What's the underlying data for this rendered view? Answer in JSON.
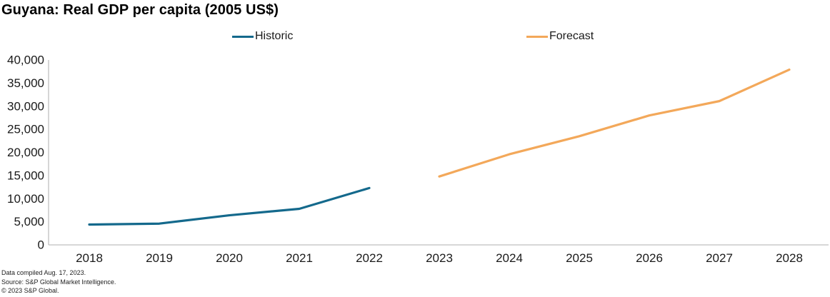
{
  "title": "Guyana: Real GDP per capita (2005 US$)",
  "legend": [
    {
      "label": "Historic",
      "color": "#14698C"
    },
    {
      "label": "Forecast",
      "color": "#F3A85A"
    }
  ],
  "footnotes": {
    "compiled": "Data compiled Aug. 17, 2023.",
    "source": "Source: S&P Global Market Intelligence.",
    "copyright": "© 2023 S&P Global."
  },
  "chart_data": {
    "type": "line",
    "title": "Guyana: Real GDP per capita (2005 US$)",
    "xlabel": "",
    "ylabel": "",
    "categories": [
      2018,
      2019,
      2020,
      2021,
      2022,
      2023,
      2024,
      2025,
      2026,
      2027,
      2028
    ],
    "series": [
      {
        "name": "Historic",
        "color": "#14698C",
        "x": [
          2018,
          2019,
          2020,
          2021,
          2022
        ],
        "values": [
          4400,
          4600,
          6400,
          7800,
          12300
        ]
      },
      {
        "name": "Forecast",
        "color": "#F3A85A",
        "x": [
          2023,
          2024,
          2025,
          2026,
          2027,
          2028
        ],
        "values": [
          14800,
          19600,
          23500,
          28000,
          31100,
          37900
        ]
      }
    ],
    "ylim": [
      0,
      40000
    ],
    "y_tick_step": 5000,
    "y_tick_labels": [
      "0",
      "5,000",
      "10,000",
      "15,000",
      "20,000",
      "25,000",
      "30,000",
      "35,000",
      "40,000"
    ],
    "grid": false,
    "tick_marks": false,
    "legend_position": "top",
    "axis_color": "#BFBFBF"
  }
}
